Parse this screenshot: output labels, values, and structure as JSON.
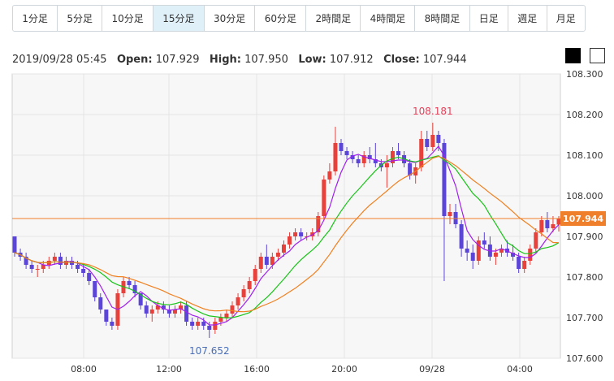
{
  "timeframes": [
    "1分足",
    "5分足",
    "10分足",
    "15分足",
    "30分足",
    "60分足",
    "2時間足",
    "4時間足",
    "8時間足",
    "日足",
    "週足",
    "月足"
  ],
  "active_timeframe": "15分足",
  "ohlc": {
    "datetime": "2019/09/28 05:45",
    "open_label": "Open:",
    "open": "107.929",
    "high_label": "High:",
    "high": "107.950",
    "low_label": "Low:",
    "low": "107.912",
    "close_label": "Close:",
    "close": "107.944"
  },
  "theme_swatches": [
    "black-theme",
    "white-theme"
  ],
  "colors": {
    "up": "#e8403b",
    "down": "#5b44d8",
    "ma_fast": "#a020f0",
    "ma_mid": "#18c418",
    "ma_slow": "#f08020",
    "price_line": "#f07f2b",
    "high_label": "#e8405a",
    "low_label": "#4a6fb8",
    "grid": "#e4e4e4",
    "plot_bg": "#f7f7f7"
  },
  "chart_data": {
    "type": "candlestick",
    "title": "",
    "xlabel": "",
    "ylabel": "",
    "ylim": [
      107.6,
      108.3
    ],
    "yticks": [
      "108.300",
      "108.200",
      "108.100",
      "108.000",
      "107.900",
      "107.800",
      "107.700",
      "107.600"
    ],
    "xticks": [
      "08:00",
      "12:00",
      "16:00",
      "20:00",
      "09/28",
      "04:00"
    ],
    "max_label": "108.181",
    "min_label": "107.652",
    "last_price_label": "107.944",
    "last_price": 107.944,
    "grid": true,
    "candles": [
      [
        107.9,
        107.9,
        107.85,
        107.86
      ],
      [
        107.86,
        107.87,
        107.84,
        107.85
      ],
      [
        107.85,
        107.86,
        107.82,
        107.83
      ],
      [
        107.83,
        107.84,
        107.81,
        107.82
      ],
      [
        107.82,
        107.83,
        107.8,
        107.82
      ],
      [
        107.82,
        107.84,
        107.81,
        107.83
      ],
      [
        107.83,
        107.85,
        107.82,
        107.84
      ],
      [
        107.84,
        107.86,
        107.83,
        107.85
      ],
      [
        107.85,
        107.86,
        107.82,
        107.83
      ],
      [
        107.83,
        107.85,
        107.82,
        107.84
      ],
      [
        107.84,
        107.85,
        107.82,
        107.83
      ],
      [
        107.83,
        107.84,
        107.81,
        107.82
      ],
      [
        107.82,
        107.83,
        107.8,
        107.81
      ],
      [
        107.81,
        107.82,
        107.78,
        107.79
      ],
      [
        107.79,
        107.79,
        107.74,
        107.75
      ],
      [
        107.75,
        107.76,
        107.71,
        107.72
      ],
      [
        107.72,
        107.72,
        107.68,
        107.69
      ],
      [
        107.69,
        107.7,
        107.67,
        107.68
      ],
      [
        107.68,
        107.77,
        107.67,
        107.76
      ],
      [
        107.76,
        107.8,
        107.75,
        107.79
      ],
      [
        107.79,
        107.8,
        107.77,
        107.78
      ],
      [
        107.78,
        107.79,
        107.75,
        107.76
      ],
      [
        107.76,
        107.76,
        107.72,
        107.73
      ],
      [
        107.73,
        107.74,
        107.7,
        107.71
      ],
      [
        107.71,
        107.73,
        107.69,
        107.72
      ],
      [
        107.72,
        107.74,
        107.71,
        107.73
      ],
      [
        107.73,
        107.74,
        107.71,
        107.72
      ],
      [
        107.72,
        107.73,
        107.7,
        107.71
      ],
      [
        107.71,
        107.73,
        107.7,
        107.72
      ],
      [
        107.72,
        107.74,
        107.71,
        107.73
      ],
      [
        107.73,
        107.74,
        107.68,
        107.69
      ],
      [
        107.69,
        107.7,
        107.67,
        107.68
      ],
      [
        107.68,
        107.7,
        107.67,
        107.69
      ],
      [
        107.69,
        107.7,
        107.67,
        107.68
      ],
      [
        107.68,
        107.69,
        107.65,
        107.67
      ],
      [
        107.67,
        107.7,
        107.66,
        107.69
      ],
      [
        107.69,
        107.71,
        107.68,
        107.7
      ],
      [
        107.7,
        107.72,
        107.69,
        107.71
      ],
      [
        107.71,
        107.74,
        107.7,
        107.73
      ],
      [
        107.73,
        107.76,
        107.72,
        107.75
      ],
      [
        107.75,
        107.78,
        107.74,
        107.77
      ],
      [
        107.77,
        107.8,
        107.76,
        107.79
      ],
      [
        107.79,
        107.83,
        107.78,
        107.82
      ],
      [
        107.82,
        107.86,
        107.81,
        107.85
      ],
      [
        107.85,
        107.88,
        107.82,
        107.83
      ],
      [
        107.83,
        107.86,
        107.82,
        107.85
      ],
      [
        107.85,
        107.87,
        107.84,
        107.86
      ],
      [
        107.86,
        107.89,
        107.85,
        107.88
      ],
      [
        107.88,
        107.91,
        107.87,
        107.9
      ],
      [
        107.9,
        107.92,
        107.89,
        107.91
      ],
      [
        107.91,
        107.92,
        107.89,
        107.9
      ],
      [
        107.9,
        107.91,
        107.89,
        107.9
      ],
      [
        107.9,
        107.92,
        107.89,
        107.91
      ],
      [
        107.91,
        107.96,
        107.9,
        107.95
      ],
      [
        107.95,
        108.05,
        107.94,
        108.04
      ],
      [
        108.04,
        108.08,
        108.03,
        108.06
      ],
      [
        108.06,
        108.17,
        108.05,
        108.13
      ],
      [
        108.13,
        108.14,
        108.1,
        108.11
      ],
      [
        108.11,
        108.12,
        108.09,
        108.1
      ],
      [
        108.1,
        108.11,
        108.08,
        108.09
      ],
      [
        108.09,
        108.1,
        108.07,
        108.08
      ],
      [
        108.08,
        108.11,
        108.07,
        108.1
      ],
      [
        108.1,
        108.12,
        108.08,
        108.09
      ],
      [
        108.09,
        108.13,
        108.07,
        108.08
      ],
      [
        108.08,
        108.09,
        108.06,
        108.07
      ],
      [
        108.07,
        108.1,
        108.02,
        108.08
      ],
      [
        108.08,
        108.12,
        108.07,
        108.11
      ],
      [
        108.11,
        108.13,
        108.09,
        108.1
      ],
      [
        108.1,
        108.11,
        108.07,
        108.08
      ],
      [
        108.08,
        108.09,
        108.04,
        108.05
      ],
      [
        108.05,
        108.08,
        108.03,
        108.07
      ],
      [
        108.07,
        108.16,
        108.06,
        108.14
      ],
      [
        108.14,
        108.16,
        108.11,
        108.12
      ],
      [
        108.12,
        108.18,
        108.11,
        108.15
      ],
      [
        108.15,
        108.16,
        108.11,
        108.13
      ],
      [
        108.13,
        108.14,
        107.79,
        107.95
      ],
      [
        107.95,
        107.98,
        107.93,
        107.96
      ],
      [
        107.96,
        107.98,
        107.92,
        107.93
      ],
      [
        107.93,
        107.94,
        107.85,
        107.87
      ],
      [
        107.87,
        107.89,
        107.84,
        107.86
      ],
      [
        107.86,
        107.88,
        107.82,
        107.84
      ],
      [
        107.84,
        107.9,
        107.83,
        107.89
      ],
      [
        107.89,
        107.91,
        107.87,
        107.88
      ],
      [
        107.88,
        107.9,
        107.84,
        107.85
      ],
      [
        107.85,
        107.87,
        107.83,
        107.86
      ],
      [
        107.86,
        107.88,
        107.85,
        107.87
      ],
      [
        107.87,
        107.89,
        107.85,
        107.86
      ],
      [
        107.86,
        107.88,
        107.84,
        107.85
      ],
      [
        107.85,
        107.86,
        107.81,
        107.82
      ],
      [
        107.82,
        107.85,
        107.81,
        107.84
      ],
      [
        107.84,
        107.88,
        107.83,
        107.87
      ],
      [
        107.87,
        107.92,
        107.86,
        107.91
      ],
      [
        107.91,
        107.95,
        107.9,
        107.94
      ],
      [
        107.94,
        107.96,
        107.91,
        107.92
      ],
      [
        107.92,
        107.95,
        107.91,
        107.93
      ],
      [
        107.929,
        107.95,
        107.912,
        107.944
      ]
    ]
  }
}
